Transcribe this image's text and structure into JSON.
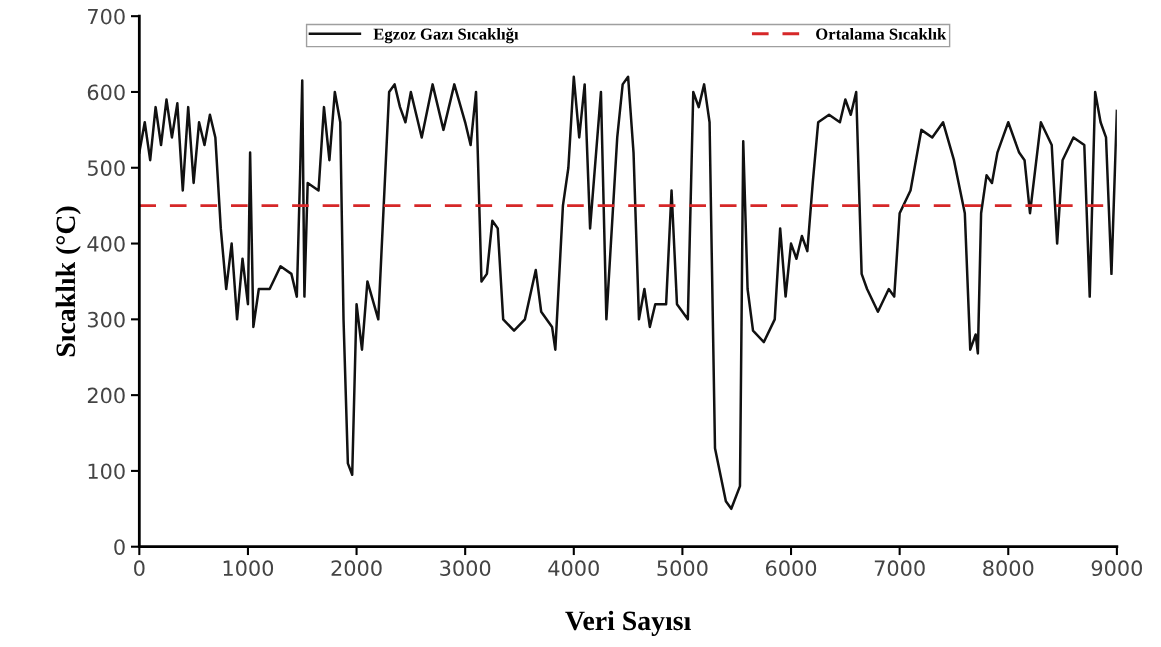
{
  "chart_data": {
    "type": "line",
    "xlabel": "Veri Sayısı",
    "ylabel": "Sıcaklık (°C)",
    "xlim": [
      0,
      9000
    ],
    "xticks": [
      0,
      1000,
      2000,
      3000,
      4000,
      5000,
      6000,
      7000,
      8000,
      9000
    ],
    "ylim": [
      0,
      700
    ],
    "yticks": [
      0,
      100,
      200,
      300,
      400,
      500,
      600,
      700
    ],
    "grid": false,
    "legend": "top",
    "line_style": "solid",
    "marker": "none",
    "series": [
      {
        "name": "Egzoz Gazı Sıcaklığı",
        "color": "#111111",
        "x": [
          0,
          50,
          100,
          150,
          200,
          250,
          300,
          350,
          400,
          450,
          500,
          550,
          600,
          650,
          700,
          750,
          800,
          850,
          900,
          950,
          1000,
          1020,
          1050,
          1100,
          1200,
          1300,
          1400,
          1450,
          1480,
          1500,
          1520,
          1550,
          1650,
          1700,
          1750,
          1800,
          1850,
          1880,
          1920,
          1960,
          2000,
          2050,
          2100,
          2200,
          2250,
          2300,
          2350,
          2400,
          2450,
          2500,
          2550,
          2600,
          2700,
          2800,
          2900,
          3000,
          3050,
          3100,
          3150,
          3200,
          3250,
          3300,
          3350,
          3450,
          3550,
          3650,
          3700,
          3800,
          3830,
          3900,
          3950,
          4000,
          4050,
          4100,
          4150,
          4250,
          4300,
          4400,
          4450,
          4500,
          4550,
          4600,
          4650,
          4700,
          4750,
          4850,
          4900,
          4950,
          5050,
          5100,
          5150,
          5200,
          5250,
          5280,
          5300,
          5400,
          5450,
          5530,
          5560,
          5600,
          5650,
          5750,
          5850,
          5900,
          5950,
          6000,
          6050,
          6100,
          6150,
          6200,
          6250,
          6350,
          6450,
          6500,
          6550,
          6600,
          6650,
          6700,
          6800,
          6900,
          6950,
          7000,
          7100,
          7200,
          7300,
          7400,
          7500,
          7600,
          7650,
          7700,
          7720,
          7750,
          7800,
          7850,
          7900,
          7950,
          8000,
          8100,
          8150,
          8200,
          8300,
          8400,
          8450,
          8500,
          8600,
          8700,
          8750,
          8800,
          8850,
          8900,
          8950,
          9000
        ],
        "values": [
          520,
          560,
          510,
          580,
          530,
          590,
          540,
          585,
          470,
          580,
          480,
          560,
          530,
          570,
          540,
          420,
          340,
          400,
          300,
          380,
          320,
          520,
          290,
          340,
          340,
          370,
          360,
          330,
          490,
          615,
          330,
          480,
          470,
          580,
          510,
          600,
          560,
          300,
          110,
          95,
          320,
          260,
          350,
          300,
          450,
          600,
          610,
          580,
          560,
          600,
          570,
          540,
          610,
          550,
          610,
          560,
          530,
          600,
          350,
          360,
          430,
          420,
          300,
          285,
          300,
          365,
          310,
          290,
          260,
          450,
          500,
          620,
          540,
          610,
          420,
          600,
          300,
          540,
          610,
          620,
          520,
          300,
          340,
          290,
          320,
          320,
          470,
          320,
          300,
          600,
          580,
          610,
          560,
          300,
          130,
          60,
          50,
          80,
          535,
          340,
          285,
          270,
          300,
          420,
          330,
          400,
          380,
          410,
          390,
          480,
          560,
          570,
          560,
          590,
          570,
          600,
          360,
          340,
          310,
          340,
          330,
          440,
          470,
          550,
          540,
          560,
          510,
          440,
          260,
          280,
          255,
          440,
          490,
          480,
          520,
          540,
          560,
          520,
          510,
          440,
          560,
          530,
          400,
          510,
          540,
          530,
          330,
          600,
          560,
          540,
          360,
          575
        ]
      }
    ],
    "ref_lines": [
      {
        "axis": "y",
        "value": 450,
        "label": "Ortalama Sıcaklık",
        "color": "#d62728",
        "line_style": "dashed"
      }
    ]
  }
}
